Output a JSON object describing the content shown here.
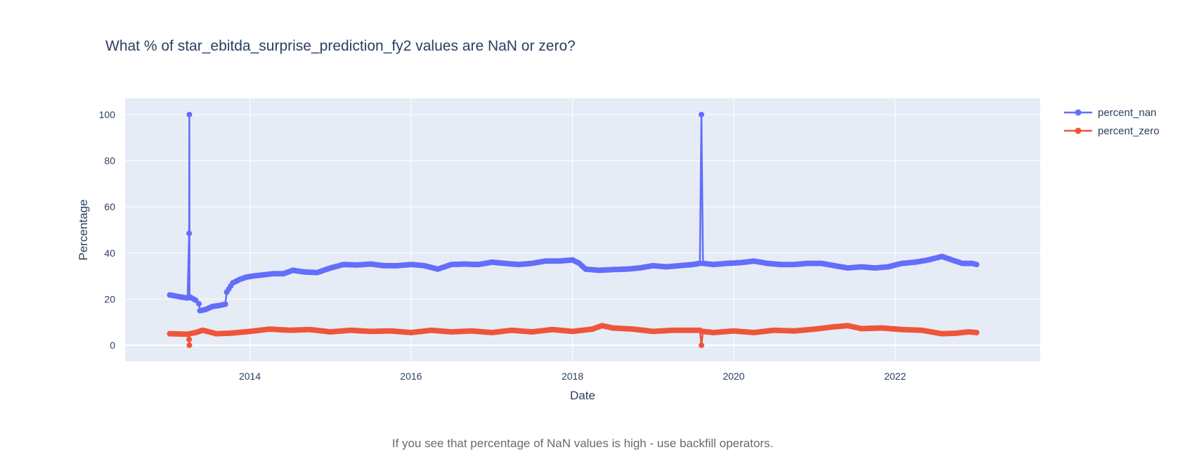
{
  "colors": {
    "nan": "#636efa",
    "zero": "#ef553b",
    "plot_bg": "#e5ecf6",
    "grid": "#ffffff",
    "text": "#2a3f5f"
  },
  "chart_data": {
    "type": "line",
    "title": "What % of star_ebitda_surprise_prediction_fy2 values are NaN or zero?",
    "xlabel": "Date",
    "ylabel": "Percentage",
    "footnote": "If you see that percentage of NaN values is high - use backfill operators.",
    "x_ticks": [
      "2014",
      "2016",
      "2018",
      "2020",
      "2022"
    ],
    "y_ticks": [
      "0",
      "20",
      "40",
      "60",
      "80",
      "100"
    ],
    "xlim": [
      "2012-06-15",
      "2023-10-20"
    ],
    "ylim": [
      -7,
      107
    ],
    "grid": true,
    "legend_position": "top-right",
    "series": [
      {
        "name": "percent_nan",
        "color": "#636efa",
        "points": [
          [
            "2013-01-03",
            21.8
          ],
          [
            "2013-02-01",
            21.3
          ],
          [
            "2013-03-01",
            20.8
          ],
          [
            "2013-03-25",
            20.5
          ],
          [
            "2013-04-01",
            48.5
          ],
          [
            "2013-04-02",
            100
          ],
          [
            "2013-04-03",
            21.0
          ],
          [
            "2013-05-01",
            19.5
          ],
          [
            "2013-05-15",
            18.0
          ],
          [
            "2013-05-20",
            15.0
          ],
          [
            "2013-06-15",
            15.5
          ],
          [
            "2013-07-15",
            16.8
          ],
          [
            "2013-08-15",
            17.2
          ],
          [
            "2013-09-12",
            17.8
          ],
          [
            "2013-09-18",
            23.0
          ],
          [
            "2013-10-15",
            27.0
          ],
          [
            "2013-11-15",
            28.5
          ],
          [
            "2013-12-15",
            29.5
          ],
          [
            "2014-01-15",
            30.0
          ],
          [
            "2014-03-01",
            30.5
          ],
          [
            "2014-04-15",
            31.0
          ],
          [
            "2014-06-01",
            31.0
          ],
          [
            "2014-07-15",
            32.5
          ],
          [
            "2014-09-01",
            31.8
          ],
          [
            "2014-11-01",
            31.5
          ],
          [
            "2015-01-01",
            33.5
          ],
          [
            "2015-03-01",
            35.0
          ],
          [
            "2015-05-01",
            34.8
          ],
          [
            "2015-07-01",
            35.2
          ],
          [
            "2015-09-01",
            34.5
          ],
          [
            "2015-11-01",
            34.5
          ],
          [
            "2016-01-01",
            35.0
          ],
          [
            "2016-03-01",
            34.5
          ],
          [
            "2016-05-01",
            33.0
          ],
          [
            "2016-07-01",
            35.0
          ],
          [
            "2016-09-01",
            35.2
          ],
          [
            "2016-11-01",
            35.0
          ],
          [
            "2017-01-01",
            36.0
          ],
          [
            "2017-03-01",
            35.5
          ],
          [
            "2017-05-01",
            35.0
          ],
          [
            "2017-07-01",
            35.5
          ],
          [
            "2017-09-01",
            36.5
          ],
          [
            "2017-11-01",
            36.5
          ],
          [
            "2018-01-01",
            37.0
          ],
          [
            "2018-02-01",
            35.5
          ],
          [
            "2018-03-01",
            33.0
          ],
          [
            "2018-05-01",
            32.5
          ],
          [
            "2018-07-01",
            32.8
          ],
          [
            "2018-09-01",
            33.0
          ],
          [
            "2018-11-01",
            33.5
          ],
          [
            "2019-01-01",
            34.5
          ],
          [
            "2019-03-01",
            34.0
          ],
          [
            "2019-05-01",
            34.5
          ],
          [
            "2019-07-01",
            35.0
          ],
          [
            "2019-08-01",
            35.5
          ],
          [
            "2019-08-08",
            100
          ],
          [
            "2019-08-15",
            35.5
          ],
          [
            "2019-10-01",
            35.0
          ],
          [
            "2019-12-01",
            35.5
          ],
          [
            "2020-02-01",
            35.8
          ],
          [
            "2020-04-01",
            36.5
          ],
          [
            "2020-06-01",
            35.5
          ],
          [
            "2020-08-01",
            35.0
          ],
          [
            "2020-10-01",
            35.0
          ],
          [
            "2020-12-01",
            35.5
          ],
          [
            "2021-02-01",
            35.5
          ],
          [
            "2021-04-01",
            34.5
          ],
          [
            "2021-06-01",
            33.5
          ],
          [
            "2021-08-01",
            34.0
          ],
          [
            "2021-10-01",
            33.5
          ],
          [
            "2021-12-01",
            34.0
          ],
          [
            "2022-02-01",
            35.5
          ],
          [
            "2022-04-01",
            36.0
          ],
          [
            "2022-06-01",
            37.0
          ],
          [
            "2022-08-01",
            38.5
          ],
          [
            "2022-09-15",
            37.0
          ],
          [
            "2022-11-01",
            35.5
          ],
          [
            "2022-12-15",
            35.5
          ],
          [
            "2023-01-05",
            35.0
          ]
        ]
      },
      {
        "name": "percent_zero",
        "color": "#ef553b",
        "points": [
          [
            "2013-01-03",
            5.0
          ],
          [
            "2013-03-25",
            4.8
          ],
          [
            "2013-04-01",
            2.5
          ],
          [
            "2013-04-02",
            0
          ],
          [
            "2013-04-03",
            5.0
          ],
          [
            "2013-05-01",
            5.5
          ],
          [
            "2013-06-01",
            6.5
          ],
          [
            "2013-07-01",
            5.8
          ],
          [
            "2013-08-01",
            5.0
          ],
          [
            "2013-10-01",
            5.2
          ],
          [
            "2014-01-01",
            6.0
          ],
          [
            "2014-04-01",
            7.0
          ],
          [
            "2014-07-01",
            6.5
          ],
          [
            "2014-10-01",
            6.8
          ],
          [
            "2015-01-01",
            5.8
          ],
          [
            "2015-04-01",
            6.5
          ],
          [
            "2015-07-01",
            6.0
          ],
          [
            "2015-10-01",
            6.2
          ],
          [
            "2016-01-01",
            5.5
          ],
          [
            "2016-04-01",
            6.5
          ],
          [
            "2016-07-01",
            5.8
          ],
          [
            "2016-10-01",
            6.2
          ],
          [
            "2017-01-01",
            5.5
          ],
          [
            "2017-04-01",
            6.5
          ],
          [
            "2017-07-01",
            5.8
          ],
          [
            "2017-10-01",
            6.8
          ],
          [
            "2018-01-01",
            6.0
          ],
          [
            "2018-04-01",
            7.0
          ],
          [
            "2018-05-15",
            8.5
          ],
          [
            "2018-07-01",
            7.5
          ],
          [
            "2018-10-01",
            7.0
          ],
          [
            "2019-01-01",
            6.0
          ],
          [
            "2019-04-01",
            6.5
          ],
          [
            "2019-08-01",
            6.5
          ],
          [
            "2019-08-08",
            0
          ],
          [
            "2019-08-15",
            6.0
          ],
          [
            "2019-10-01",
            5.5
          ],
          [
            "2020-01-01",
            6.2
          ],
          [
            "2020-04-01",
            5.5
          ],
          [
            "2020-07-01",
            6.5
          ],
          [
            "2020-10-01",
            6.2
          ],
          [
            "2021-01-01",
            7.0
          ],
          [
            "2021-04-01",
            8.0
          ],
          [
            "2021-06-01",
            8.5
          ],
          [
            "2021-08-01",
            7.2
          ],
          [
            "2021-11-01",
            7.5
          ],
          [
            "2022-02-01",
            6.8
          ],
          [
            "2022-05-01",
            6.5
          ],
          [
            "2022-08-01",
            5.0
          ],
          [
            "2022-10-01",
            5.2
          ],
          [
            "2022-12-01",
            5.8
          ],
          [
            "2023-01-05",
            5.5
          ]
        ]
      }
    ]
  }
}
